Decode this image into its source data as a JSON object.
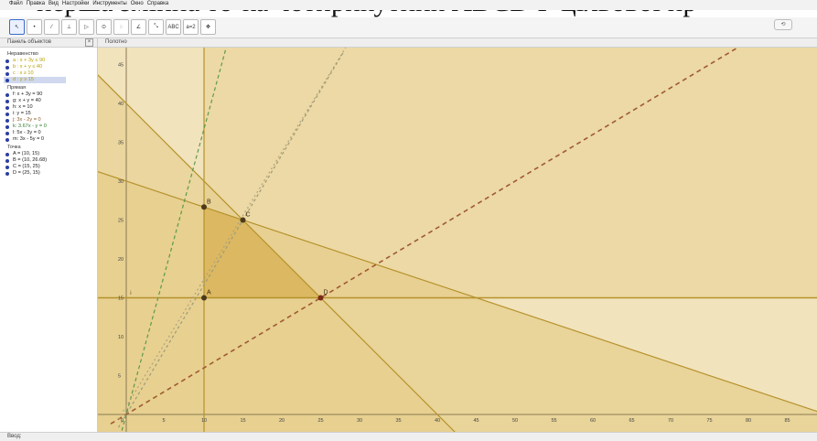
{
  "document_text": "перша змінна то-ка чотирикутник ABCD Г цільової пр",
  "menu": [
    "Файл",
    "Правка",
    "Вид",
    "Настройки",
    "Инструменты",
    "Окно",
    "Справка"
  ],
  "toolbar": {
    "tools": [
      {
        "icon": "move-arrow-icon",
        "glyph": "↖",
        "active": true
      },
      {
        "icon": "point-icon",
        "glyph": "•"
      },
      {
        "icon": "line-icon",
        "glyph": "⁄"
      },
      {
        "icon": "perpendicular-icon",
        "glyph": "⊥"
      },
      {
        "icon": "polygon-icon",
        "glyph": "▷"
      },
      {
        "icon": "circle-icon",
        "glyph": "⊙"
      },
      {
        "icon": "conic-icon",
        "glyph": "◌"
      },
      {
        "icon": "angle-icon",
        "glyph": "∠"
      },
      {
        "icon": "reflect-icon",
        "glyph": "⤡"
      },
      {
        "icon": "text-icon",
        "glyph": "ABC"
      },
      {
        "icon": "slider-icon",
        "glyph": "a=2"
      },
      {
        "icon": "move-view-icon",
        "glyph": "✥"
      }
    ],
    "undo": "⟲"
  },
  "object_panel": {
    "title": "Панель объектов",
    "close": "×",
    "groups": [
      {
        "title": "Неравенство",
        "items": [
          {
            "text": "a : x + 3y ≤ 90",
            "color": "#b8a000"
          },
          {
            "text": "b : x + y ≤ 40",
            "color": "#b8a000"
          },
          {
            "text": "c : x ≥ 10",
            "color": "#b8a000"
          },
          {
            "text": "d : y ≥ 15",
            "color": "#b8a000",
            "selected": true
          }
        ]
      },
      {
        "title": "Прямая",
        "items": [
          {
            "text": "f: x + 3y = 90",
            "color": "#222"
          },
          {
            "text": "g: x + y = 40",
            "color": "#222"
          },
          {
            "text": "h: x = 10",
            "color": "#222"
          },
          {
            "text": "i: y = 15",
            "color": "#222"
          },
          {
            "text": "j: 3x - 2y = 0",
            "color": "#8a5a2a"
          },
          {
            "text": "k: 3.67x - y = 0",
            "color": "#2f7a2f"
          },
          {
            "text": "l: 5x - 3y = 0",
            "color": "#222"
          },
          {
            "text": "m: 3x - 5y = 0",
            "color": "#222"
          }
        ]
      },
      {
        "title": "Точка",
        "items": [
          {
            "text": "A = (10, 15)",
            "color": "#222"
          },
          {
            "text": "B = (10, 26.68)",
            "color": "#222"
          },
          {
            "text": "C = (15, 25)",
            "color": "#222"
          },
          {
            "text": "D = (25, 15)",
            "color": "#222"
          }
        ]
      }
    ]
  },
  "graphics": {
    "title": "Полотно",
    "x_ticks": [
      "5",
      "10",
      "15",
      "20",
      "25",
      "30",
      "35",
      "40",
      "45",
      "50",
      "55",
      "60",
      "65",
      "70",
      "75",
      "80",
      "85"
    ],
    "y_ticks": [
      "5",
      "10",
      "15",
      "20",
      "25",
      "30",
      "35",
      "40",
      "45"
    ],
    "origin_label": "0",
    "line_labels": {
      "h": "h",
      "k": "k",
      "l": "l",
      "j": "j",
      "i": "i",
      "f": "f",
      "g": "g"
    },
    "point_labels": {
      "A": "A",
      "B": "B",
      "C": "C",
      "D": "D"
    }
  },
  "status": {
    "label": "Ввод:"
  },
  "colors": {
    "region_light": "#f1e3bc",
    "region_mid": "#e6cd8a",
    "region_dark": "#d9b65c",
    "line_dark": "#b6922c",
    "dashed_brown": "#a05a32",
    "dashed_green": "#5d9a4a"
  }
}
